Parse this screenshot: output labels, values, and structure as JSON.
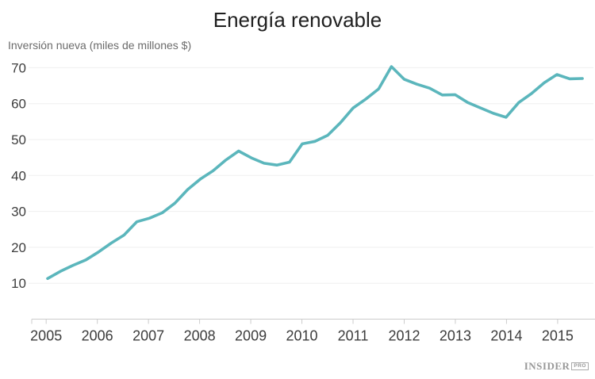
{
  "page": {
    "title": "Energía renovable"
  },
  "chart": {
    "colors": {
      "line": "#5bb6bc",
      "grid": "#efefef",
      "axis": "#cccccc",
      "title_text": "#1f1f1f",
      "subtitle_text": "#6b6b6b",
      "axis_label_text": "#3d3d3d"
    }
  },
  "chart_data": {
    "type": "line",
    "title": "Energía renovable",
    "subtitle": "Inversión nueva (miles de millones $)",
    "xlabel": "",
    "ylabel": "Inversión nueva (miles de millones $)",
    "x_tick_labels": [
      "2005",
      "2006",
      "2007",
      "2008",
      "2009",
      "2010",
      "2011",
      "2012",
      "2013",
      "2014",
      "2015"
    ],
    "y_ticks": [
      10,
      20,
      30,
      40,
      50,
      60,
      70
    ],
    "ylim": [
      0,
      77
    ],
    "grid": "horizontal-only",
    "legend": "none",
    "series": [
      {
        "name": "Inversión nueva (miles de millones $)",
        "x": [
          "2005 Q1",
          "2005 Q2",
          "2005 Q3",
          "2005 Q4",
          "2006 Q1",
          "2006 Q2",
          "2006 Q3",
          "2006 Q4",
          "2007 Q1",
          "2007 Q2",
          "2007 Q3",
          "2007 Q4",
          "2008 Q1",
          "2008 Q2",
          "2008 Q3",
          "2008 Q4",
          "2009 Q1",
          "2009 Q2",
          "2009 Q3",
          "2009 Q4",
          "2010 Q1",
          "2010 Q2",
          "2010 Q3",
          "2010 Q4",
          "2011 Q1",
          "2011 Q2",
          "2011 Q3",
          "2011 Q4",
          "2012 Q1",
          "2012 Q2",
          "2012 Q3",
          "2012 Q4",
          "2013 Q1",
          "2013 Q2",
          "2013 Q3",
          "2013 Q4",
          "2014 Q1",
          "2014 Q2",
          "2014 Q3",
          "2014 Q4",
          "2015 Q1",
          "2015 Q2",
          "2015 Q3"
        ],
        "values": [
          11.3,
          13.3,
          15.0,
          16.5,
          18.7,
          21.2,
          23.4,
          27.1,
          28.1,
          29.6,
          32.3,
          36.1,
          39.0,
          41.3,
          44.3,
          46.8,
          44.9,
          43.4,
          42.9,
          43.7,
          48.8,
          49.5,
          51.2,
          54.7,
          58.8,
          61.3,
          64.1,
          70.3,
          66.8,
          65.4,
          64.3,
          62.4,
          62.5,
          60.3,
          58.8,
          57.3,
          56.2,
          60.3,
          62.8,
          65.8,
          68.1,
          66.9,
          67.0
        ]
      }
    ]
  },
  "branding": {
    "name": "INSIDER",
    "badge": "PRO"
  }
}
